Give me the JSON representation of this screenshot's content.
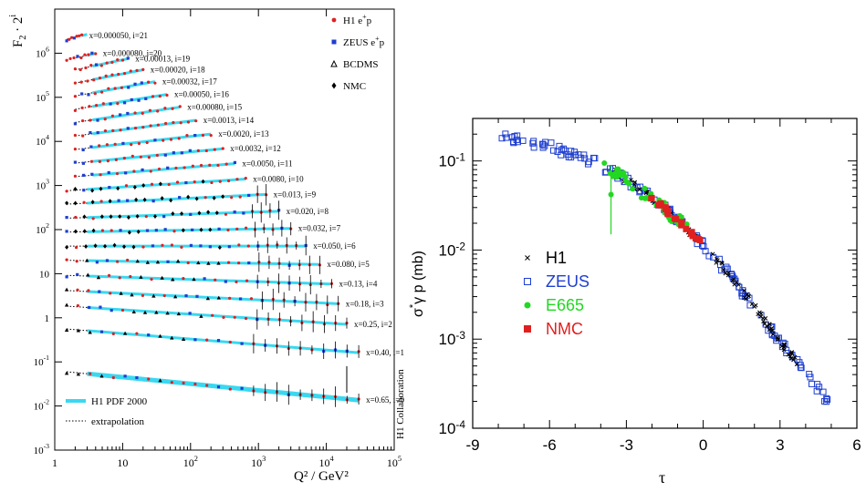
{
  "chart_data": [
    {
      "type": "scatter",
      "ylabel_base": "F",
      "ylabel_sub": "2",
      "ylabel_mid": " · 2",
      "ylabel_sup": "i",
      "xlabel": "Q² / GeV²",
      "xscale": "log",
      "yscale": "log",
      "xlim": [
        1,
        100000
      ],
      "ylim": [
        0.001,
        10000000
      ],
      "xtick_labels": [
        {
          "v": 1,
          "t": "1"
        },
        {
          "v": 10,
          "t": "10"
        },
        {
          "v": 100,
          "m": "10",
          "e": "2"
        },
        {
          "v": 1000,
          "m": "10",
          "e": "3"
        },
        {
          "v": 10000,
          "m": "10",
          "e": "4"
        },
        {
          "v": 100000,
          "m": "10",
          "e": "5"
        }
      ],
      "ytick_labels": [
        {
          "v": 0.001,
          "m": "10",
          "e": "-3"
        },
        {
          "v": 0.01,
          "m": "10",
          "e": "-2"
        },
        {
          "v": 0.1,
          "m": "10",
          "e": "-1"
        },
        {
          "v": 1,
          "t": "1"
        },
        {
          "v": 10,
          "t": "10"
        },
        {
          "v": 100,
          "m": "10",
          "e": "2"
        },
        {
          "v": 1000,
          "m": "10",
          "e": "3"
        },
        {
          "v": 10000,
          "m": "10",
          "e": "4"
        },
        {
          "v": 100000,
          "m": "10",
          "e": "5"
        },
        {
          "v": 1000000,
          "m": "10",
          "e": "6"
        }
      ],
      "legend_top": [
        {
          "label": "H1 e",
          "sup": "+",
          "tail": "p",
          "color": "#e02020",
          "marker": "dot"
        },
        {
          "label": "ZEUS e",
          "sup": "+",
          "tail": "p",
          "color": "#1f3fd0",
          "marker": "square"
        },
        {
          "label": "BCDMS",
          "color": "#000000",
          "marker": "triangle"
        },
        {
          "label": "NMC",
          "color": "#000000",
          "marker": "diamond"
        }
      ],
      "legend_bottom": [
        {
          "label": "H1 PDF 2000",
          "color": "#3ad8f0",
          "style": "thick"
        },
        {
          "label": "extrapolation",
          "color": "#000000",
          "style": "dotted"
        }
      ],
      "side_label": "H1 Collaboration",
      "series": [
        {
          "i": 21,
          "label": "x=0.000050, i=21",
          "qmin": 1.5,
          "qmax": 2.5,
          "v": 2.0
        },
        {
          "i": 20,
          "label": "x=0.000080, i=20",
          "qmin": 1.5,
          "qmax": 4,
          "v": 1.3
        },
        {
          "i": 19,
          "label": "x=0.00013, i=19",
          "qmin": 2,
          "qmax": 12,
          "v": 1.35
        },
        {
          "i": 18,
          "label": "x=0.00020, i=18",
          "qmin": 2,
          "qmax": 20,
          "v": 1.3
        },
        {
          "i": 17,
          "label": "x=0.00032, i=17",
          "qmin": 2,
          "qmax": 30,
          "v": 1.28
        },
        {
          "i": 16,
          "label": "x=0.00050, i=16",
          "qmin": 2,
          "qmax": 45,
          "v": 1.22
        },
        {
          "i": 15,
          "label": "x=0.00080, i=15",
          "qmin": 2,
          "qmax": 70,
          "v": 1.18
        },
        {
          "i": 14,
          "label": "x=0.0013, i=14",
          "qmin": 2,
          "qmax": 120,
          "v": 1.12
        },
        {
          "i": 13,
          "label": "x=0.0020, i=13",
          "qmin": 2,
          "qmax": 200,
          "v": 1.06
        },
        {
          "i": 12,
          "label": "x=0.0032, i=12",
          "qmin": 2,
          "qmax": 300,
          "v": 1.0
        },
        {
          "i": 11,
          "label": "x=0.0050, i=11",
          "qmin": 2,
          "qmax": 450,
          "v": 0.95
        },
        {
          "i": 10,
          "label": "x=0.0080, i=10",
          "qmin": 1.5,
          "qmax": 650,
          "v": 0.9
        },
        {
          "i": 9,
          "label": "x=0.013, i=9",
          "qmin": 1.5,
          "qmax": 1300,
          "v": 0.85
        },
        {
          "i": 8,
          "label": "x=0.020, i=8",
          "qmin": 1.5,
          "qmax": 2000,
          "v": 0.78
        },
        {
          "i": 7,
          "label": "x=0.032, i=7",
          "qmin": 1.5,
          "qmax": 3000,
          "v": 0.72
        },
        {
          "i": 6,
          "label": "x=0.050, i=6",
          "qmin": 1.5,
          "qmax": 5000,
          "v": 0.66
        },
        {
          "i": 5,
          "label": "x=0.080, i=5",
          "qmin": 1.5,
          "qmax": 8000,
          "v": 0.6
        },
        {
          "i": 4,
          "label": "x=0.13, i=4",
          "qmin": 1.5,
          "qmax": 12000,
          "v": 0.52
        },
        {
          "i": 3,
          "label": "x=0.18, i=3",
          "qmin": 1.5,
          "qmax": 15000,
          "v": 0.45
        },
        {
          "i": 2,
          "label": "x=0.25, i=2",
          "qmin": 1.5,
          "qmax": 20000,
          "v": 0.38
        },
        {
          "i": 1,
          "label": "x=0.40, i=1",
          "qmin": 1.5,
          "qmax": 30000,
          "v": 0.22
        },
        {
          "i": 0,
          "label": "x=0.65, i=0",
          "qmin": 1.5,
          "qmax": 30000,
          "v": 0.045
        }
      ]
    },
    {
      "type": "scatter",
      "ylabel": "σ",
      "ylabel_sup": "*",
      "ylabel_tail": "γ p (mb)",
      "xlabel": "τ",
      "yscale": "log",
      "xlim": [
        -9,
        6
      ],
      "ylim": [
        0.0001,
        0.3
      ],
      "xtick_labels": [
        "-9",
        "-6",
        "-3",
        "0",
        "3",
        "6"
      ],
      "xtick_values": [
        -9,
        -6,
        -3,
        0,
        3,
        6
      ],
      "ytick_labels": [
        {
          "v": 0.1,
          "m": "10",
          "e": "-1"
        },
        {
          "v": 0.01,
          "m": "10",
          "e": "-2"
        },
        {
          "v": 0.001,
          "m": "10",
          "e": "-3"
        },
        {
          "v": 0.0001,
          "m": "10",
          "e": "-4"
        }
      ],
      "legend": [
        {
          "label": "H1",
          "color": "#000000",
          "marker": "cross"
        },
        {
          "label": "ZEUS",
          "color": "#1f3fd0",
          "marker": "open-square"
        },
        {
          "label": "E665",
          "color": "#22d822",
          "marker": "dot"
        },
        {
          "label": "NMC",
          "color": "#e02020",
          "marker": "square"
        }
      ],
      "curve": [
        [
          -8,
          0.185
        ],
        [
          -7,
          0.17
        ],
        [
          -6,
          0.145
        ],
        [
          -5,
          0.118
        ],
        [
          -4,
          0.09
        ],
        [
          -3,
          0.062
        ],
        [
          -2,
          0.038
        ],
        [
          -1,
          0.022
        ],
        [
          0,
          0.0115
        ],
        [
          1,
          0.0054
        ],
        [
          2,
          0.0023
        ],
        [
          3,
          0.00095
        ],
        [
          4,
          0.00042
        ],
        [
          5,
          0.00018
        ]
      ]
    }
  ]
}
